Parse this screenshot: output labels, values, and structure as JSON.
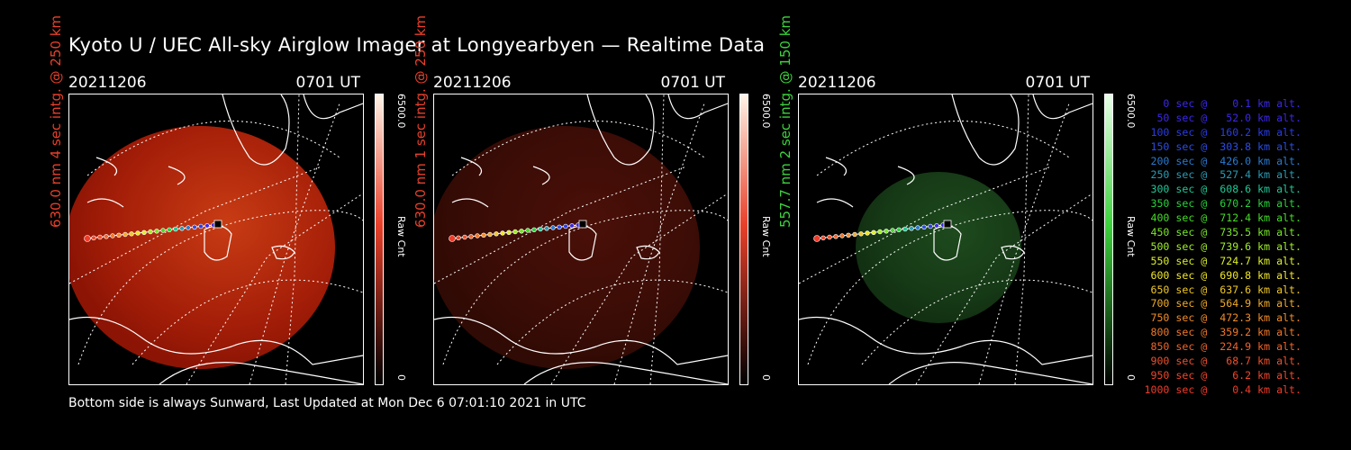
{
  "title": "Kyoto U / UEC All-sky Airglow Imager at Longyearbyen — Realtime Data",
  "footer": "Bottom side is always Sunward, Last Updated at Mon Dec  6 07:01:10 2021 in UTC",
  "colors": {
    "red": "#e8402a",
    "green": "#3cd23c"
  },
  "panels": [
    {
      "date": "20211206",
      "time": "0701 UT",
      "ylabel": "630.0 nm 4 sec intg. @ 250 km",
      "cbar_max": "6500.0",
      "cbar_label": "Raw Cnt",
      "cbar_min": "0",
      "channel": "red",
      "intensity": "bright"
    },
    {
      "date": "20211206",
      "time": "0701 UT",
      "ylabel": "630.0 nm 1 sec intg. @ 250 km",
      "cbar_max": "6500.0",
      "cbar_label": "Raw Cnt",
      "cbar_min": "0",
      "channel": "red",
      "intensity": "dim"
    },
    {
      "date": "20211206",
      "time": "0701 UT",
      "ylabel": "557.7 nm 2 sec intg. @ 150 km",
      "cbar_max": "6500.0",
      "cbar_label": "Raw Cnt",
      "cbar_min": "0",
      "channel": "green",
      "intensity": "dim"
    }
  ],
  "legend": [
    {
      "text": "   0 sec @    0.1 km alt.",
      "color": "#3c28e6"
    },
    {
      "text": "  50 sec @   52.0 km alt.",
      "color": "#3c28e6"
    },
    {
      "text": " 100 sec @  160.2 km alt.",
      "color": "#2a3ce6"
    },
    {
      "text": " 150 sec @  303.8 km alt.",
      "color": "#2a4ce6"
    },
    {
      "text": " 200 sec @  426.0 km alt.",
      "color": "#2a7ad2"
    },
    {
      "text": " 250 sec @  527.4 km alt.",
      "color": "#2a9cb4"
    },
    {
      "text": " 300 sec @  608.6 km alt.",
      "color": "#1ec896"
    },
    {
      "text": " 350 sec @  670.2 km alt.",
      "color": "#28d23c"
    },
    {
      "text": " 400 sec @  712.4 km alt.",
      "color": "#46dc28"
    },
    {
      "text": " 450 sec @  735.5 km alt.",
      "color": "#78e628"
    },
    {
      "text": " 500 sec @  739.6 km alt.",
      "color": "#a0ee28"
    },
    {
      "text": " 550 sec @  724.7 km alt.",
      "color": "#dcf028"
    },
    {
      "text": " 600 sec @  690.8 km alt.",
      "color": "#f0e628"
    },
    {
      "text": " 650 sec @  637.6 km alt.",
      "color": "#f0c828"
    },
    {
      "text": " 700 sec @  564.9 km alt.",
      "color": "#f0aa28"
    },
    {
      "text": " 750 sec @  472.3 km alt.",
      "color": "#f08c28"
    },
    {
      "text": " 800 sec @  359.2 km alt.",
      "color": "#f07828"
    },
    {
      "text": " 850 sec @  224.9 km alt.",
      "color": "#f0642a"
    },
    {
      "text": " 900 sec @   68.7 km alt.",
      "color": "#f0502a"
    },
    {
      "text": " 950 sec @    6.2 km alt.",
      "color": "#f0462a"
    },
    {
      "text": "1000 sec @    0.4 km alt.",
      "color": "#f03c2a"
    }
  ]
}
